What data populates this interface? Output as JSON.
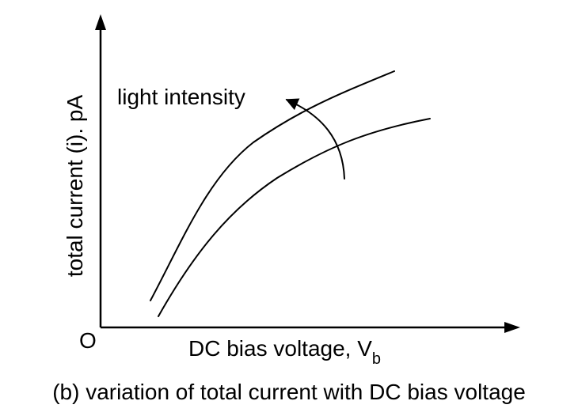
{
  "diagram": {
    "y_axis_label": "total current (i). pA",
    "x_axis_label_main": "DC bias voltage, V",
    "x_axis_label_sub": "b",
    "origin_label": "O",
    "annotation": "light intensity",
    "caption": "(b) variation of total current with DC bias voltage"
  }
}
